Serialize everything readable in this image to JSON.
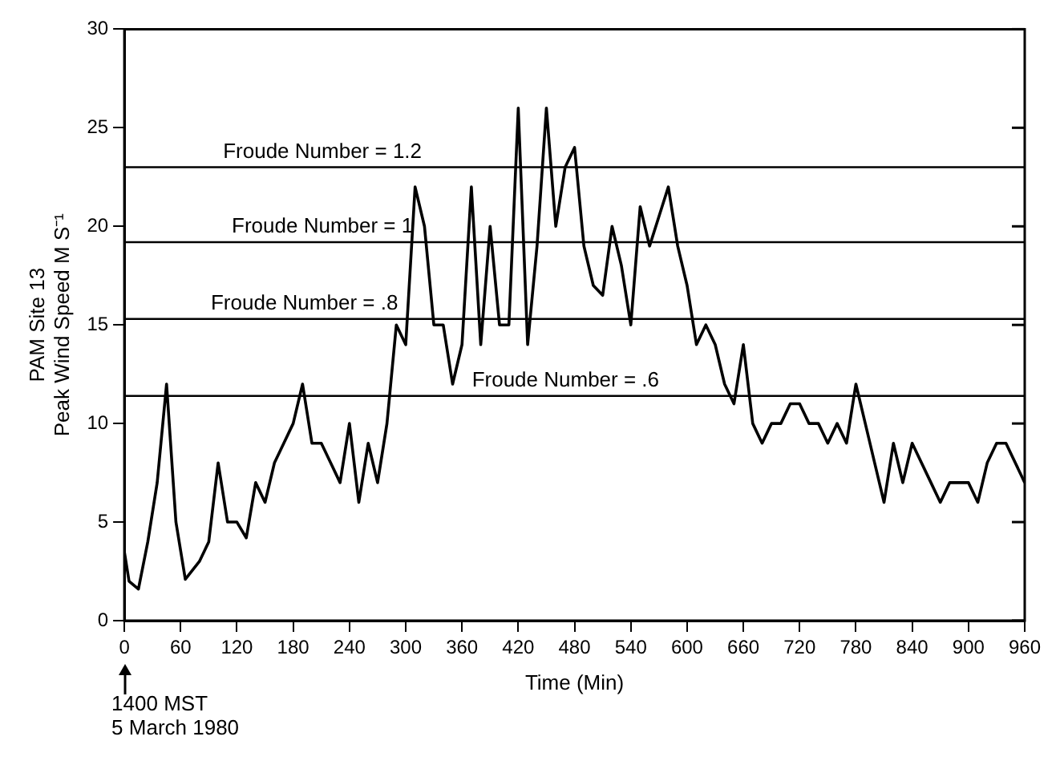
{
  "chart_data": {
    "type": "line",
    "xlabel": "Time (Min)",
    "ylabel": "PAM Site 13\nPeak Wind Speed M S⁻¹",
    "x": [
      0,
      5,
      15,
      25,
      35,
      45,
      55,
      65,
      80,
      90,
      100,
      110,
      120,
      130,
      140,
      150,
      160,
      170,
      180,
      190,
      200,
      210,
      220,
      230,
      240,
      250,
      260,
      270,
      280,
      290,
      300,
      310,
      320,
      330,
      340,
      350,
      360,
      370,
      380,
      390,
      400,
      410,
      420,
      430,
      440,
      450,
      460,
      470,
      480,
      490,
      500,
      510,
      520,
      530,
      540,
      550,
      560,
      570,
      580,
      590,
      600,
      610,
      620,
      630,
      640,
      650,
      660,
      670,
      680,
      690,
      700,
      710,
      720,
      730,
      740,
      750,
      760,
      770,
      780,
      790,
      800,
      810,
      820,
      830,
      840,
      860,
      870,
      880,
      890,
      900,
      910,
      920,
      930,
      940,
      960
    ],
    "series": [
      {
        "color": "#000000",
        "values": [
          3.5,
          2,
          1.6,
          4,
          7,
          12,
          5,
          2.1,
          3,
          4,
          8,
          5,
          5,
          4.2,
          7,
          6,
          8,
          9,
          10,
          12,
          9,
          9,
          8,
          7,
          10,
          6,
          9,
          7,
          10,
          15,
          14,
          22,
          20,
          15,
          15,
          12,
          14,
          22,
          14,
          20,
          15,
          15,
          26,
          14,
          19,
          26,
          20,
          23,
          24,
          19,
          17,
          16.5,
          20,
          18,
          15,
          21,
          19,
          20.5,
          22,
          19,
          17,
          14,
          15,
          14,
          12,
          11,
          14,
          10,
          9,
          10,
          10,
          11,
          11,
          10,
          10,
          9,
          10,
          9,
          12,
          10,
          8,
          6,
          9,
          7,
          9,
          7,
          6,
          7,
          7,
          7,
          6,
          8,
          9,
          9,
          7
        ]
      }
    ],
    "xlim": [
      0,
      960
    ],
    "xticks": [
      0,
      60,
      120,
      180,
      240,
      300,
      360,
      420,
      480,
      540,
      600,
      660,
      720,
      780,
      840,
      900,
      960
    ],
    "ylim": [
      0,
      30
    ],
    "yticks": [
      0,
      5,
      10,
      15,
      20,
      25,
      30
    ],
    "grid": false,
    "legend": false,
    "marker": "none",
    "line_style": "solid",
    "ref_lines": [
      {
        "axis": "y",
        "value": 23
      },
      {
        "axis": "y",
        "value": 19.2
      },
      {
        "axis": "y",
        "value": 15.3
      },
      {
        "axis": "y",
        "value": 11.4
      }
    ],
    "annotations": [
      {
        "text": "Froude Number = 1.2",
        "y": 23
      },
      {
        "text": "Froude Number = 1",
        "y": 19.2
      },
      {
        "text": "Froude Number = .8",
        "y": 15.3
      },
      {
        "text": "Froude Number = .6",
        "y": 11.4
      },
      "1400 MST\n5 March 1980"
    ]
  }
}
